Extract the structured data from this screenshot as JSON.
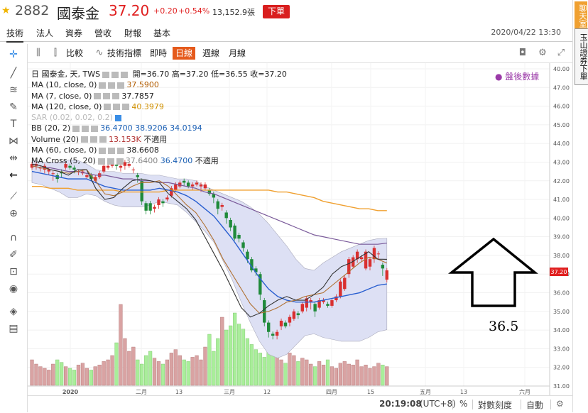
{
  "header": {
    "code": "2882",
    "name": "國泰金",
    "price": "37.20",
    "change": "+0.20",
    "change_pct": "+0.54%",
    "volume": "13,152.9張",
    "order_label": "下單"
  },
  "tabs": [
    "技術",
    "法人",
    "資券",
    "營收",
    "財報",
    "基本"
  ],
  "datetime": "2020/04/22 13:30",
  "sidebar": {
    "chat": "聊天室",
    "esun": "玉山證券下單"
  },
  "chart_toolbar": {
    "compare": "比較",
    "indicators": "技術指標",
    "intraday": "即時",
    "daily": "日線",
    "weekly": "週線",
    "monthly": "月線"
  },
  "legend": {
    "main": {
      "label": "日 國泰金, 天, TWS",
      "open": "開=36.70",
      "high": "高=37.20",
      "low": "低=36.55",
      "close": "收=37.20"
    },
    "ma10": {
      "label": "MA (10, close, 0)",
      "v": "37.5900"
    },
    "ma7": {
      "label": "MA (7, close, 0)",
      "v": "37.7857"
    },
    "ma120": {
      "label": "MA (120, close, 0)",
      "v": "40.3979"
    },
    "sar": {
      "label": "SAR (0.02, 0.02, 0.2)"
    },
    "bb": {
      "label": "BB (20, 2)",
      "v1": "36.4700",
      "v2": "38.9206",
      "v3": "34.0194"
    },
    "volume": {
      "label": "Volume (20)",
      "v1": "13.153K",
      "v2": "不適用"
    },
    "ma60": {
      "label": "MA (60, close, 0)",
      "v": "38.6608"
    },
    "macross": {
      "label": "MA Cross (5, 20)",
      "v1": "37.6400",
      "v2": "36.4700",
      "v3": "不適用"
    }
  },
  "after_hours": "盤後數據",
  "price_axis": [
    "40.00",
    "47.00",
    "46.00",
    "45.00",
    "44.00",
    "43.00",
    "42.00",
    "41.00",
    "40.00",
    "39.00",
    "38.00",
    "37.00",
    "36.00",
    "35.00",
    "34.00",
    "33.00",
    "32.00",
    "31.00"
  ],
  "current_price_tag": "37.20",
  "time_axis": [
    "2020",
    "二月",
    "13",
    "三月",
    "12",
    "四月",
    "15",
    "五月",
    "13",
    "六月"
  ],
  "bottom": {
    "clock": "20:19:08",
    "tz": "(UTC+8)",
    "pct": "%",
    "log": "對數刻度",
    "auto": "自動"
  },
  "annotation": "36.5",
  "colors": {
    "up": "#e02020",
    "candle_up": "#d93030",
    "candle_down": "#1f8a3a",
    "ma10": "#b07030",
    "ma7": "#333333",
    "ma120": "#f0a030",
    "ma60": "#7a5a9a",
    "bb_mid": "#2a5fd0",
    "bb_band": "#dde0f4",
    "vol_up": "#d9a3a3",
    "vol_down": "#a9ee9a"
  },
  "chart_data": {
    "type": "candlestick",
    "ylim": [
      31,
      48
    ],
    "ma120": [
      41.7,
      41.7,
      41.6,
      41.6,
      41.6,
      41.5,
      41.5,
      41.5,
      41.5,
      41.5,
      41.4,
      41.4,
      41.4,
      41.4,
      41.4,
      41.5,
      41.5,
      41.5,
      41.5,
      41.5,
      41.5,
      41.5,
      41.5,
      41.5,
      41.5,
      41.5,
      41.5,
      41.4,
      41.4,
      41.3,
      41.2,
      41.1,
      40.9,
      40.8,
      40.7,
      40.6,
      40.5,
      40.5,
      40.4,
      40.4
    ],
    "ma60": [
      42.8,
      42.7,
      42.7,
      42.6,
      42.5,
      42.5,
      42.4,
      42.3,
      42.3,
      42.2,
      42.1,
      42.1,
      42.0,
      42.0,
      41.9,
      41.9,
      41.8,
      41.7,
      41.6,
      41.4,
      41.3,
      41.1,
      40.9,
      40.7,
      40.5,
      40.3,
      40.1,
      39.9,
      39.7,
      39.5,
      39.3,
      39.1,
      39.0,
      38.9,
      38.8,
      38.7,
      38.6,
      38.6,
      38.6,
      38.66
    ],
    "bb_mid": [
      42.5,
      42.4,
      42.3,
      42.2,
      42.1,
      42.1,
      42.1,
      41.9,
      41.7,
      41.6,
      41.5,
      41.5,
      41.5,
      41.5,
      41.6,
      41.5,
      41.4,
      41.2,
      40.9,
      40.5,
      40.1,
      39.5,
      38.9,
      38.2,
      37.5,
      36.8,
      36.2,
      35.8,
      35.6,
      35.5,
      35.5,
      35.5,
      35.6,
      35.7,
      35.8,
      35.9,
      36.0,
      36.2,
      36.4,
      36.47
    ],
    "bb_upper": [
      43.1,
      43.0,
      43.0,
      43.0,
      43.1,
      43.1,
      42.9,
      42.6,
      42.5,
      42.5,
      42.4,
      42.4,
      42.4,
      42.3,
      42.3,
      42.2,
      42.1,
      42.1,
      42.0,
      41.7,
      41.5,
      41.3,
      41.1,
      40.9,
      40.6,
      40.2,
      39.7,
      39.1,
      38.5,
      37.8,
      37.3,
      37.2,
      37.6,
      37.9,
      38.2,
      38.4,
      38.6,
      38.8,
      38.9,
      38.92
    ],
    "bb_lower": [
      41.9,
      41.8,
      41.6,
      41.4,
      41.1,
      41.1,
      41.3,
      41.2,
      40.9,
      40.7,
      40.6,
      40.6,
      40.6,
      40.7,
      40.9,
      40.8,
      40.7,
      40.3,
      39.8,
      39.3,
      38.7,
      37.7,
      36.7,
      35.5,
      34.4,
      33.4,
      32.7,
      32.5,
      32.7,
      33.2,
      33.7,
      33.8,
      33.6,
      33.5,
      33.4,
      33.4,
      33.4,
      33.6,
      33.9,
      34.02
    ],
    "ma10": [
      42.8,
      42.7,
      42.6,
      42.5,
      42.4,
      42.5,
      42.6,
      42.0,
      41.3,
      41.2,
      41.4,
      41.7,
      41.9,
      41.9,
      42.0,
      41.7,
      41.2,
      40.7,
      40.3,
      39.6,
      38.8,
      37.8,
      37.0,
      36.2,
      35.4,
      34.9,
      35.0,
      35.2,
      35.5,
      35.6,
      35.8,
      35.9,
      36.0,
      36.4,
      36.8,
      37.2,
      37.6,
      37.9,
      37.8,
      37.59
    ],
    "ma7": [
      42.9,
      42.8,
      42.6,
      42.5,
      42.3,
      42.6,
      42.6,
      41.6,
      41.0,
      41.1,
      41.6,
      42.0,
      42.1,
      42.0,
      41.9,
      41.3,
      40.9,
      40.5,
      39.9,
      39.0,
      38.1,
      37.2,
      36.2,
      35.2,
      34.7,
      34.9,
      35.3,
      35.6,
      35.8,
      35.6,
      35.6,
      35.9,
      36.3,
      37.0,
      37.4,
      37.6,
      37.9,
      38.2,
      37.8,
      37.79
    ],
    "candles": [
      [
        42.7,
        42.9,
        42.6
      ],
      [
        42.8,
        42.9,
        42.6
      ],
      [
        42.7,
        42.7,
        42.5
      ],
      [
        42.6,
        42.8,
        42.4
      ],
      [
        42.5,
        42.6,
        42.3
      ],
      [
        42.4,
        42.4,
        42.0
      ],
      [
        42.3,
        42.1,
        41.9
      ],
      [
        42.5,
        42.4,
        42.2
      ],
      [
        42.7,
        42.9,
        42.6
      ],
      [
        42.8,
        42.7,
        42.6
      ],
      [
        42.7,
        42.6,
        42.4
      ],
      [
        42.5,
        42.5,
        42.3
      ],
      [
        42.4,
        42.5,
        42.3
      ],
      [
        42.2,
        42.3,
        42.1
      ],
      [
        42.3,
        42.1,
        42.0
      ],
      [
        42.0,
        42.2,
        41.9
      ],
      [
        42.2,
        42.4,
        42.1
      ],
      [
        42.5,
        42.8,
        42.4
      ],
      [
        42.7,
        42.8,
        42.6
      ],
      [
        42.8,
        42.9,
        42.7
      ],
      [
        42.9,
        42.8,
        42.6
      ],
      [
        42.7,
        42.8,
        42.5
      ],
      [
        42.8,
        43.0,
        42.6
      ],
      [
        42.8,
        42.9,
        42.7
      ],
      [
        42.6,
        42.6,
        42.4
      ],
      [
        42.3,
        42.2,
        41.9
      ],
      [
        42.0,
        40.9,
        40.7
      ],
      [
        40.8,
        40.4,
        40.2
      ],
      [
        40.8,
        40.4,
        40.2
      ],
      [
        40.5,
        40.6,
        40.3
      ],
      [
        40.7,
        41.0,
        40.5
      ],
      [
        40.9,
        40.8,
        40.6
      ],
      [
        41.0,
        41.1,
        40.9
      ],
      [
        41.2,
        41.6,
        41.1
      ],
      [
        41.5,
        41.8,
        41.4
      ],
      [
        41.7,
        41.9,
        41.6
      ],
      [
        42.0,
        41.9,
        41.7
      ],
      [
        41.9,
        41.7,
        41.6
      ],
      [
        41.7,
        41.8,
        41.5
      ],
      [
        41.8,
        41.9,
        41.7
      ],
      [
        41.7,
        41.8,
        41.4
      ],
      [
        41.6,
        41.8,
        41.5
      ],
      [
        41.5,
        41.3,
        41.2
      ],
      [
        41.3,
        41.1,
        40.8
      ],
      [
        40.9,
        40.5,
        40.2
      ],
      [
        40.6,
        40.7,
        40.4
      ],
      [
        40.3,
        40.0,
        39.7
      ],
      [
        39.9,
        39.5,
        39.3
      ],
      [
        39.6,
        38.9,
        38.8
      ],
      [
        39.1,
        38.9,
        38.7
      ],
      [
        38.7,
        38.4,
        38.2
      ],
      [
        38.2,
        37.8,
        37.6
      ],
      [
        37.8,
        37.2,
        37.1
      ],
      [
        37.3,
        37.1,
        36.9
      ],
      [
        37.0,
        35.9,
        35.6
      ],
      [
        35.6,
        34.4,
        34.2
      ],
      [
        34.4,
        33.9,
        33.6
      ],
      [
        33.8,
        33.7,
        33.5
      ],
      [
        33.7,
        33.9,
        33.5
      ],
      [
        34.2,
        34.5,
        34.0
      ],
      [
        34.4,
        34.2,
        34.1
      ],
      [
        34.4,
        34.7,
        34.2
      ],
      [
        34.6,
        35.0,
        34.5
      ],
      [
        34.9,
        34.8,
        34.6
      ],
      [
        35.0,
        35.4,
        34.9
      ],
      [
        35.2,
        35.7,
        35.0
      ],
      [
        35.5,
        35.6,
        35.1
      ],
      [
        35.4,
        35.0,
        34.7
      ],
      [
        35.2,
        35.6,
        35.1
      ],
      [
        35.5,
        35.6,
        35.4
      ],
      [
        35.4,
        35.3,
        35.2
      ],
      [
        35.3,
        35.6,
        35.2
      ],
      [
        35.6,
        35.8,
        35.5
      ],
      [
        35.8,
        36.6,
        35.7
      ],
      [
        36.2,
        36.8,
        36.1
      ],
      [
        37.0,
        37.8,
        36.8
      ],
      [
        37.4,
        37.9,
        37.3
      ],
      [
        37.8,
        38.2,
        37.6
      ],
      [
        37.8,
        37.9,
        37.7
      ],
      [
        37.3,
        38.2,
        37.2
      ],
      [
        37.4,
        37.8,
        37.2
      ],
      [
        37.8,
        38.4,
        37.6
      ],
      [
        38.1,
        38.1,
        37.8
      ],
      [
        37.5,
        37.3,
        36.9
      ],
      [
        36.7,
        37.2,
        36.55
      ]
    ],
    "volume": [
      0.3,
      0.25,
      0.22,
      0.2,
      0.18,
      0.25,
      0.3,
      0.27,
      0.22,
      0.2,
      0.18,
      0.24,
      0.26,
      0.2,
      0.18,
      0.22,
      0.24,
      0.28,
      0.3,
      0.35,
      0.5,
      0.95,
      0.55,
      0.4,
      0.45,
      0.3,
      0.25,
      0.35,
      0.4,
      0.32,
      0.28,
      0.25,
      0.3,
      0.38,
      0.42,
      0.35,
      0.3,
      0.28,
      0.33,
      0.35,
      0.3,
      0.45,
      0.6,
      0.4,
      0.55,
      0.8,
      0.65,
      0.7,
      0.85,
      0.72,
      0.66,
      0.55,
      0.48,
      0.42,
      0.38,
      0.33,
      0.45,
      0.4,
      0.36,
      0.3,
      0.26,
      0.38,
      0.35,
      0.28,
      0.32,
      0.3,
      0.25,
      0.22,
      0.28,
      0.24,
      0.3,
      0.22,
      0.2,
      0.26,
      0.28,
      0.25,
      0.24,
      0.3,
      0.22,
      0.24,
      0.2,
      0.22,
      0.26,
      0.24,
      0.22
    ]
  }
}
